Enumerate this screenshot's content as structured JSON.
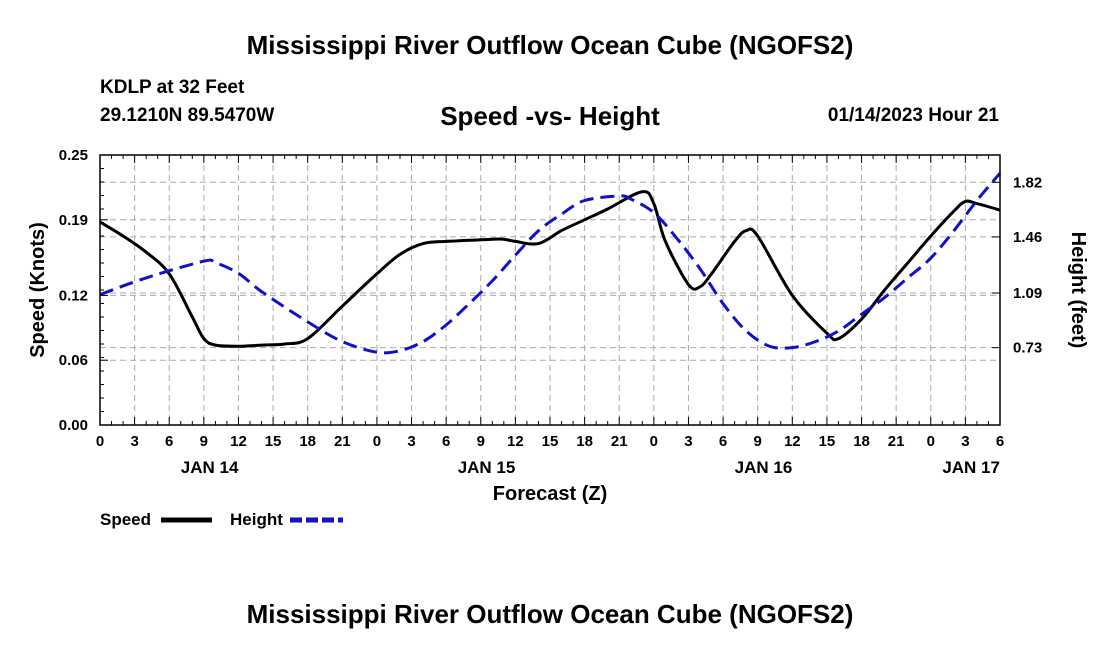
{
  "header": {
    "title": "Mississippi River Outflow Ocean Cube (NGOFS2)",
    "station": "KDLP at 32 Feet",
    "coords": "29.1210N  89.5470W",
    "subtitle": "Speed -vs- Height",
    "run_time": "01/14/2023 Hour 21"
  },
  "footer": {
    "title": "Mississippi River Outflow Ocean Cube (NGOFS2)"
  },
  "chart_data": {
    "type": "line",
    "title": "Speed -vs- Height",
    "xlabel": "Forecast (Z)",
    "ylabel": "Speed (Knots)",
    "y2label": "Height (feet)",
    "x_range_hours": [
      0,
      78
    ],
    "x_tick_labels": [
      "0",
      "3",
      "6",
      "9",
      "12",
      "15",
      "18",
      "21",
      "0",
      "3",
      "6",
      "9",
      "12",
      "15",
      "18",
      "21",
      "0",
      "3",
      "6",
      "9",
      "12",
      "15",
      "18",
      "21",
      "0",
      "3",
      "6"
    ],
    "day_labels": [
      {
        "label": "JAN 14",
        "hour": 9.5
      },
      {
        "label": "JAN 15",
        "hour": 33.5
      },
      {
        "label": "JAN 16",
        "hour": 57.5
      },
      {
        "label": "JAN 17",
        "hour": 75.5
      }
    ],
    "ylim": [
      0,
      0.25
    ],
    "y_ticks": [
      "0.00",
      "0.06",
      "0.12",
      "0.19",
      "0.25"
    ],
    "y2lim": [
      0.22,
      2.0
    ],
    "y2_ticks": [
      "0.73",
      "1.09",
      "1.46",
      "1.82"
    ],
    "grid": true,
    "legend": [
      "Speed",
      "Height"
    ],
    "series": [
      {
        "name": "Speed",
        "axis": "left",
        "color": "#000000",
        "style": "solid",
        "x": [
          0,
          2,
          4,
          6,
          8,
          9,
          10,
          12,
          14,
          16,
          18,
          21,
          24,
          26,
          28,
          30,
          32,
          34,
          35,
          36,
          38,
          40,
          42,
          44,
          47,
          48,
          49,
          51,
          52,
          53,
          55,
          56,
          57,
          60,
          63,
          64,
          66,
          68,
          70,
          72,
          74,
          75,
          76,
          78
        ],
        "y": [
          0.188,
          0.175,
          0.16,
          0.14,
          0.1,
          0.08,
          0.074,
          0.073,
          0.074,
          0.075,
          0.08,
          0.11,
          0.14,
          0.158,
          0.168,
          0.17,
          0.171,
          0.172,
          0.172,
          0.17,
          0.168,
          0.18,
          0.19,
          0.2,
          0.216,
          0.205,
          0.17,
          0.13,
          0.128,
          0.14,
          0.17,
          0.18,
          0.175,
          0.12,
          0.085,
          0.08,
          0.098,
          0.125,
          0.15,
          0.175,
          0.198,
          0.207,
          0.205,
          0.199
        ]
      },
      {
        "name": "Height",
        "axis": "right",
        "color": "#1111cc",
        "style": "dashed",
        "x": [
          0,
          4,
          9,
          10,
          12,
          14,
          18,
          21,
          24,
          26,
          28,
          30,
          32,
          34,
          36,
          38,
          40,
          42,
          45,
          46,
          48,
          50,
          52,
          54,
          56,
          58,
          60,
          62,
          64,
          66,
          68,
          70,
          72,
          74,
          76,
          78
        ],
        "y": [
          1.08,
          1.19,
          1.3,
          1.29,
          1.22,
          1.1,
          0.9,
          0.77,
          0.7,
          0.71,
          0.77,
          0.88,
          1.02,
          1.17,
          1.34,
          1.5,
          1.61,
          1.7,
          1.73,
          1.71,
          1.62,
          1.45,
          1.25,
          1.02,
          0.84,
          0.74,
          0.73,
          0.77,
          0.84,
          0.95,
          1.06,
          1.19,
          1.32,
          1.5,
          1.7,
          1.88
        ]
      }
    ]
  }
}
